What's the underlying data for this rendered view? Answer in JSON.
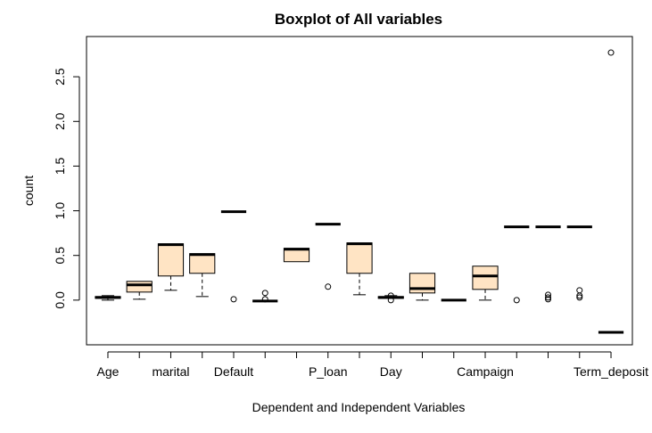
{
  "chart_data": {
    "type": "boxplot",
    "title": "Boxplot of All variables",
    "xlabel": "Dependent and Independent Variables",
    "ylabel": "count",
    "ylim": [
      -0.5,
      2.95
    ],
    "yticks": [
      0.0,
      0.5,
      1.0,
      1.5,
      2.0,
      2.5
    ],
    "ytick_labels": [
      "0.0",
      "0.5",
      "1.0",
      "1.5",
      "2.0",
      "2.5"
    ],
    "xtick_labels": [
      {
        "index": 1,
        "label": "Age"
      },
      {
        "index": 3,
        "label": "marital"
      },
      {
        "index": 5,
        "label": "Default"
      },
      {
        "index": 8,
        "label": "P_loan"
      },
      {
        "index": 10,
        "label": "Day"
      },
      {
        "index": 13,
        "label": "Campaign"
      },
      {
        "index": 17,
        "label": "Term_deposit"
      }
    ],
    "fill_color": "#ffe4c4",
    "boxes": [
      {
        "index": 1,
        "whislo": 0.0,
        "q1": 0.02,
        "med": 0.03,
        "q3": 0.04,
        "whishi": 0.05,
        "fliers": []
      },
      {
        "index": 2,
        "whislo": 0.01,
        "q1": 0.09,
        "med": 0.17,
        "q3": 0.21,
        "whishi": 0.21,
        "fliers": []
      },
      {
        "index": 3,
        "whislo": 0.11,
        "q1": 0.27,
        "med": 0.62,
        "q3": 0.63,
        "whishi": 0.63,
        "fliers": []
      },
      {
        "index": 4,
        "whislo": 0.04,
        "q1": 0.3,
        "med": 0.51,
        "q3": 0.52,
        "whishi": 0.52,
        "fliers": []
      },
      {
        "index": 5,
        "whislo": 0.99,
        "q1": 0.99,
        "med": 0.99,
        "q3": 0.99,
        "whishi": 0.99,
        "fliers": [
          0.01
        ]
      },
      {
        "index": 6,
        "whislo": -0.01,
        "q1": -0.01,
        "med": -0.01,
        "q3": -0.01,
        "whishi": -0.01,
        "fliers": [
          0.08,
          0.01
        ]
      },
      {
        "index": 7,
        "whislo": 0.43,
        "q1": 0.43,
        "med": 0.57,
        "q3": 0.58,
        "whishi": 0.58,
        "fliers": []
      },
      {
        "index": 8,
        "whislo": 0.85,
        "q1": 0.85,
        "med": 0.85,
        "q3": 0.85,
        "whishi": 0.85,
        "fliers": [
          0.15
        ]
      },
      {
        "index": 9,
        "whislo": 0.06,
        "q1": 0.3,
        "med": 0.63,
        "q3": 0.64,
        "whishi": 0.64,
        "fliers": []
      },
      {
        "index": 10,
        "whislo": 0.02,
        "q1": 0.02,
        "med": 0.03,
        "q3": 0.04,
        "whishi": 0.05,
        "fliers": [
          0.05,
          0.0
        ]
      },
      {
        "index": 11,
        "whislo": 0.0,
        "q1": 0.08,
        "med": 0.13,
        "q3": 0.3,
        "whishi": 0.3,
        "fliers": []
      },
      {
        "index": 12,
        "whislo": 0.0,
        "q1": 0.0,
        "med": 0.0,
        "q3": 0.0,
        "whishi": 0.0,
        "fliers": []
      },
      {
        "index": 13,
        "whislo": 0.0,
        "q1": 0.12,
        "med": 0.27,
        "q3": 0.38,
        "whishi": 0.38,
        "fliers": []
      },
      {
        "index": 14,
        "whislo": 0.82,
        "q1": 0.82,
        "med": 0.82,
        "q3": 0.82,
        "whishi": 0.82,
        "fliers": [
          0.0
        ]
      },
      {
        "index": 15,
        "whislo": 0.82,
        "q1": 0.82,
        "med": 0.82,
        "q3": 0.82,
        "whishi": 0.82,
        "fliers": [
          0.06,
          0.03,
          0.01
        ]
      },
      {
        "index": 16,
        "whislo": 0.82,
        "q1": 0.82,
        "med": 0.82,
        "q3": 0.82,
        "whishi": 0.82,
        "fliers": [
          0.11,
          0.05,
          0.03
        ]
      },
      {
        "index": 17,
        "whislo": -0.36,
        "q1": -0.36,
        "med": -0.36,
        "q3": -0.36,
        "whishi": -0.36,
        "fliers": [
          2.77
        ]
      }
    ]
  }
}
